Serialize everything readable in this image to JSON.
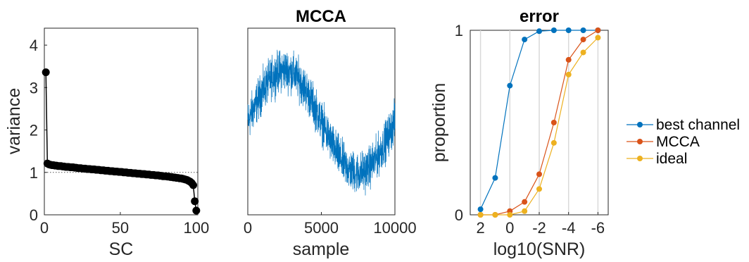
{
  "chart_data": [
    {
      "type": "scatter",
      "title": "",
      "xlabel": "SC",
      "ylabel": "variance",
      "xlim": [
        0,
        101
      ],
      "ylim": [
        0,
        4.4
      ],
      "xticks": [
        "0",
        "50",
        "100"
      ],
      "xtick_values": [
        0,
        50,
        100
      ],
      "yticks": [
        "0",
        "1",
        "2",
        "3",
        "4"
      ],
      "ytick_values": [
        0,
        1,
        2,
        3,
        4
      ],
      "reference_line": {
        "y": 1.0,
        "style": "dotted"
      },
      "series": [
        {
          "marker": "circle",
          "color": "#000000",
          "x": [
            1,
            2,
            3,
            4,
            5,
            6,
            7,
            8,
            9,
            10,
            11,
            12,
            13,
            14,
            15,
            16,
            17,
            18,
            19,
            20,
            21,
            22,
            23,
            24,
            25,
            26,
            27,
            28,
            29,
            30,
            31,
            32,
            33,
            34,
            35,
            36,
            37,
            38,
            39,
            40,
            41,
            42,
            43,
            44,
            45,
            46,
            47,
            48,
            49,
            50,
            51,
            52,
            53,
            54,
            55,
            56,
            57,
            58,
            59,
            60,
            61,
            62,
            63,
            64,
            65,
            66,
            67,
            68,
            69,
            70,
            71,
            72,
            73,
            74,
            75,
            76,
            77,
            78,
            79,
            80,
            81,
            82,
            83,
            84,
            85,
            86,
            87,
            88,
            89,
            90,
            91,
            92,
            93,
            94,
            95,
            96,
            97,
            98,
            99,
            100
          ],
          "y": [
            3.36,
            1.21,
            1.19,
            1.18,
            1.17,
            1.17,
            1.16,
            1.16,
            1.15,
            1.15,
            1.15,
            1.14,
            1.14,
            1.13,
            1.13,
            1.13,
            1.12,
            1.12,
            1.12,
            1.11,
            1.11,
            1.1,
            1.1,
            1.1,
            1.09,
            1.09,
            1.09,
            1.08,
            1.08,
            1.08,
            1.07,
            1.07,
            1.07,
            1.06,
            1.06,
            1.06,
            1.05,
            1.05,
            1.05,
            1.04,
            1.04,
            1.04,
            1.03,
            1.03,
            1.03,
            1.02,
            1.02,
            1.02,
            1.01,
            1.01,
            1.01,
            1.0,
            1.0,
            1.0,
            0.99,
            0.99,
            0.99,
            0.98,
            0.98,
            0.98,
            0.97,
            0.97,
            0.97,
            0.96,
            0.96,
            0.96,
            0.95,
            0.95,
            0.95,
            0.94,
            0.94,
            0.94,
            0.93,
            0.93,
            0.93,
            0.92,
            0.92,
            0.91,
            0.91,
            0.91,
            0.9,
            0.9,
            0.89,
            0.89,
            0.88,
            0.88,
            0.87,
            0.87,
            0.86,
            0.86,
            0.85,
            0.84,
            0.83,
            0.82,
            0.8,
            0.78,
            0.75,
            0.7,
            0.32,
            0.1
          ]
        }
      ]
    },
    {
      "type": "line",
      "title": "MCCA",
      "xlabel": "sample",
      "ylabel": "",
      "xlim": [
        0,
        10000
      ],
      "xticks": [
        "0",
        "5000",
        "10000"
      ],
      "xtick_values": [
        0,
        5000,
        10000
      ],
      "yticks": [],
      "signal": {
        "n_samples": 10000,
        "description_shape": "sinusoid",
        "period_samples": 10000,
        "amplitude": 0.55,
        "noise_band": 0.2
      },
      "series": [
        {
          "color": "#0072BD"
        }
      ]
    },
    {
      "type": "line",
      "title": "error",
      "xlabel": "log10(SNR)",
      "ylabel": "proportion",
      "xlim": [
        2.7,
        -6.7
      ],
      "ylim": [
        0,
        1
      ],
      "xticks": [
        "2",
        "0",
        "-2",
        "-4",
        "-6"
      ],
      "xtick_values": [
        2,
        0,
        -2,
        -4,
        -6
      ],
      "yticks": [
        "0",
        "1"
      ],
      "ytick_values": [
        0,
        1
      ],
      "grid": "vertical",
      "legend": "outside-right",
      "x": [
        2,
        1,
        0,
        -1,
        -2,
        -3,
        -4,
        -5,
        -6
      ],
      "series": [
        {
          "name": "best channel",
          "color": "#0072BD",
          "values": [
            0.03,
            0.2,
            0.7,
            0.95,
            0.995,
            1.0,
            1.0,
            1.0,
            1.0
          ]
        },
        {
          "name": "MCCA",
          "color": "#D95319",
          "values": [
            0.0,
            0.0,
            0.02,
            0.07,
            0.22,
            0.5,
            0.84,
            0.95,
            1.0
          ]
        },
        {
          "name": "ideal",
          "color": "#EDB120",
          "values": [
            0.0,
            0.0,
            0.0,
            0.02,
            0.14,
            0.39,
            0.76,
            0.88,
            0.96
          ]
        }
      ]
    }
  ]
}
